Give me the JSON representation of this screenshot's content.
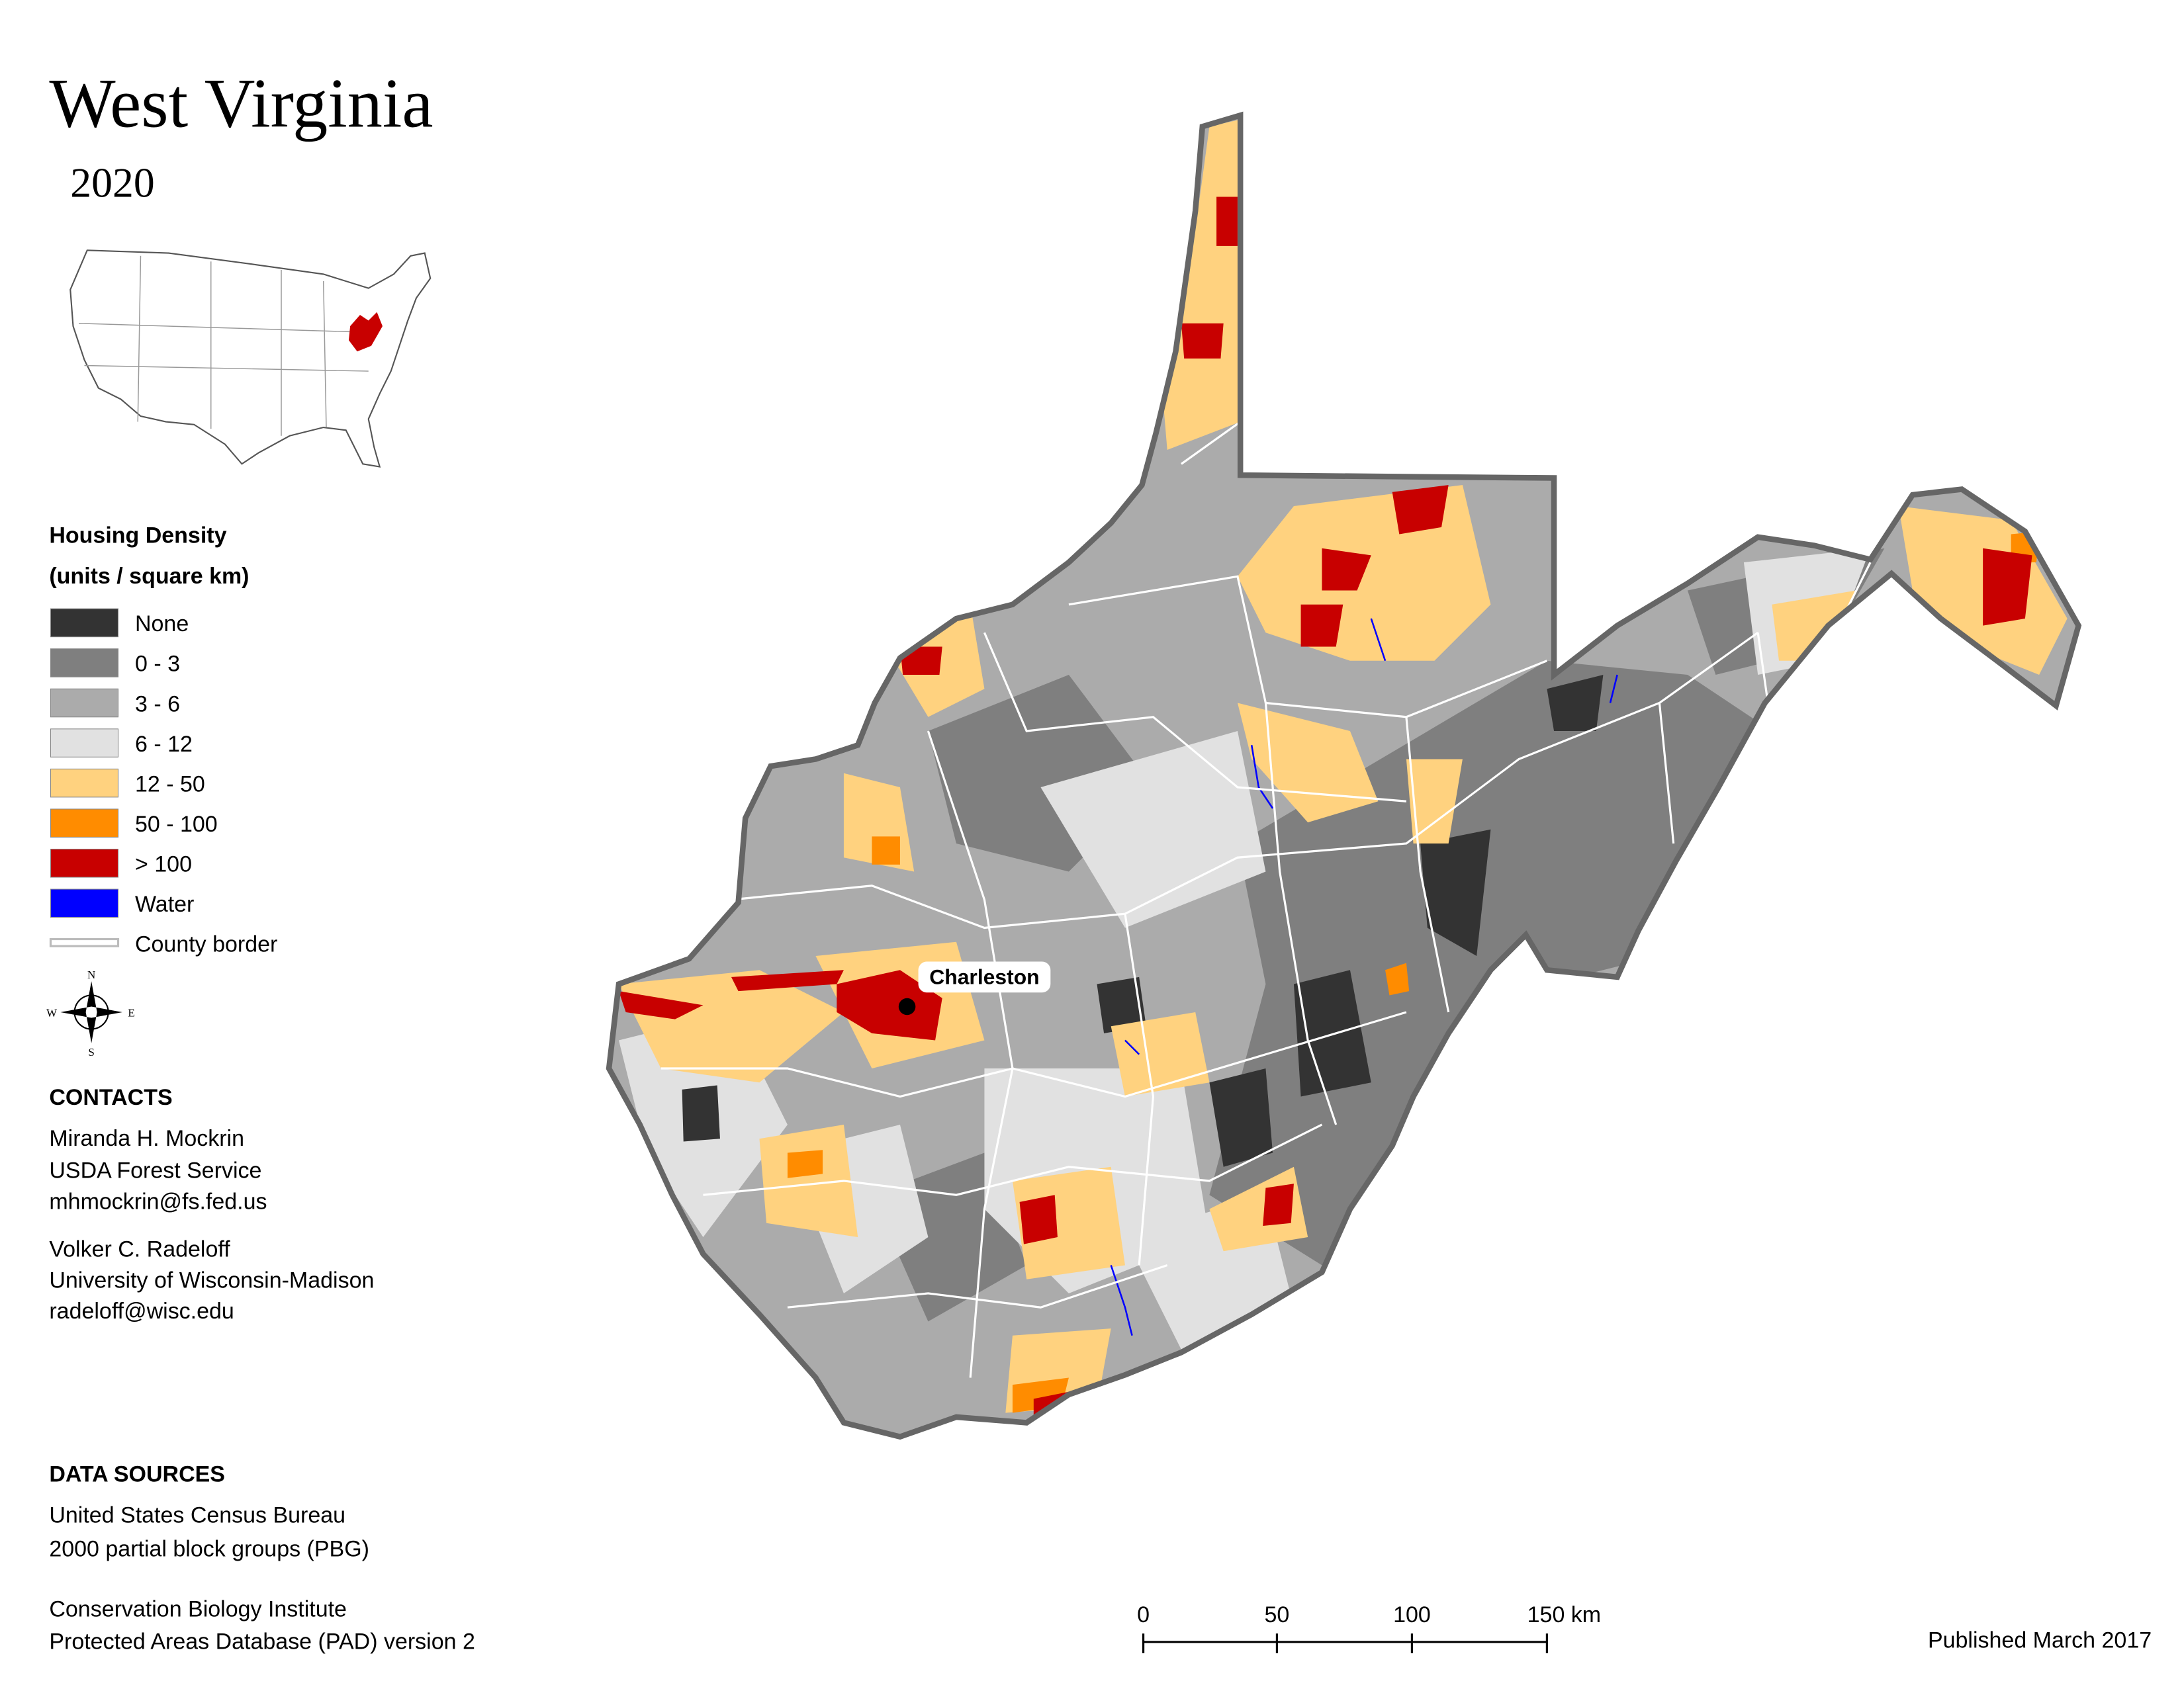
{
  "title": "West Virginia",
  "year": "2020",
  "legend": {
    "title": "Housing Density",
    "subtitle": "(units / square km)",
    "items": [
      {
        "label": "None",
        "color": "#333333"
      },
      {
        "label": "0 - 3",
        "color": "#7f7f7f"
      },
      {
        "label": "3 - 6",
        "color": "#ababab"
      },
      {
        "label": "6 - 12",
        "color": "#e1e1e1"
      },
      {
        "label": "12 - 50",
        "color": "#ffd27f"
      },
      {
        "label": "50 - 100",
        "color": "#ff8c00"
      },
      {
        "label": "> 100",
        "color": "#c80000"
      },
      {
        "label": "Water",
        "color": "#0000ff"
      },
      {
        "label": "County border",
        "color": "#ffffff"
      }
    ]
  },
  "compass": {
    "n": "N",
    "s": "S",
    "e": "E",
    "w": "W"
  },
  "contacts": {
    "heading": "CONTACTS",
    "people": [
      [
        "Miranda H. Mockrin",
        "USDA Forest Service",
        "mhmockrin@fs.fed.us"
      ],
      [
        "Volker C. Radeloff",
        "University of Wisconsin-Madison",
        "radeloff@wisc.edu"
      ]
    ]
  },
  "data_sources": {
    "heading": "DATA SOURCES",
    "lines": [
      "United States Census Bureau",
      "2000 partial block groups (PBG)",
      "Conservation Biology Institute",
      "Protected Areas Database (PAD) version 2"
    ]
  },
  "city": "Charleston",
  "scale_bar": {
    "labels": [
      "0",
      "50",
      "100",
      "150 km"
    ]
  },
  "published": "Published March 2017"
}
